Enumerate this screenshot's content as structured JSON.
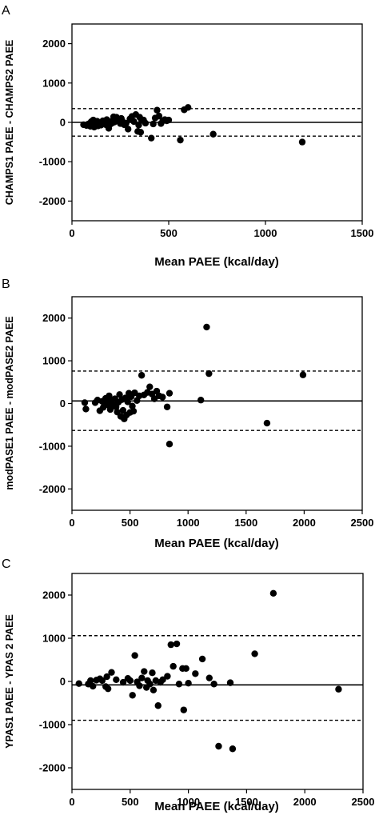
{
  "chart_data": [
    {
      "type": "scatter",
      "panel": "A",
      "xlabel": "Mean PAEE (kcal/day)",
      "ylabel": "CHAMPS1 PAEE - CHAMPS2 PAEE",
      "xlim": [
        0,
        1500
      ],
      "ylim": [
        -2500,
        2500
      ],
      "xticks": [
        "0",
        "500",
        "1000",
        "1500"
      ],
      "yticks": [
        "2000",
        "1000",
        "0",
        "-1000",
        "-2000"
      ],
      "mean_line": 0,
      "upper_limit": 350,
      "lower_limit": -350,
      "grid": false,
      "points": [
        [
          60,
          -60
        ],
        [
          75,
          -80
        ],
        [
          85,
          -40
        ],
        [
          95,
          -100
        ],
        [
          100,
          20
        ],
        [
          105,
          -30
        ],
        [
          110,
          60
        ],
        [
          115,
          -120
        ],
        [
          120,
          0
        ],
        [
          130,
          30
        ],
        [
          135,
          -90
        ],
        [
          140,
          -20
        ],
        [
          150,
          -70
        ],
        [
          160,
          40
        ],
        [
          170,
          0
        ],
        [
          175,
          -60
        ],
        [
          180,
          70
        ],
        [
          190,
          -150
        ],
        [
          195,
          20
        ],
        [
          200,
          -40
        ],
        [
          210,
          -10
        ],
        [
          215,
          140
        ],
        [
          220,
          10
        ],
        [
          230,
          130
        ],
        [
          240,
          80
        ],
        [
          250,
          -30
        ],
        [
          255,
          100
        ],
        [
          260,
          30
        ],
        [
          270,
          -60
        ],
        [
          280,
          -20
        ],
        [
          290,
          -170
        ],
        [
          300,
          90
        ],
        [
          310,
          150
        ],
        [
          320,
          20
        ],
        [
          330,
          200
        ],
        [
          340,
          -230
        ],
        [
          345,
          -70
        ],
        [
          350,
          130
        ],
        [
          355,
          -250
        ],
        [
          360,
          50
        ],
        [
          370,
          60
        ],
        [
          380,
          -20
        ],
        [
          410,
          -400
        ],
        [
          420,
          -40
        ],
        [
          430,
          110
        ],
        [
          440,
          310
        ],
        [
          450,
          160
        ],
        [
          460,
          -30
        ],
        [
          470,
          40
        ],
        [
          480,
          70
        ],
        [
          490,
          40
        ],
        [
          500,
          60
        ],
        [
          560,
          -450
        ],
        [
          580,
          320
        ],
        [
          600,
          380
        ],
        [
          730,
          -300
        ],
        [
          1190,
          -500
        ]
      ]
    },
    {
      "type": "scatter",
      "panel": "B",
      "xlabel": "Mean PAEE (kcal/day)",
      "ylabel": "modPASE1 PAEE - modPASE2 PAEE",
      "xlim": [
        0,
        2500
      ],
      "ylim": [
        -2500,
        2500
      ],
      "xticks": [
        "0",
        "500",
        "1000",
        "1500",
        "2000",
        "2500"
      ],
      "yticks": [
        "2000",
        "1000",
        "0",
        "-1000",
        "-2000"
      ],
      "mean_line": 60,
      "upper_limit": 760,
      "lower_limit": -630,
      "grid": false,
      "points": [
        [
          110,
          20
        ],
        [
          120,
          -130
        ],
        [
          200,
          20
        ],
        [
          220,
          80
        ],
        [
          240,
          -170
        ],
        [
          260,
          50
        ],
        [
          270,
          -90
        ],
        [
          290,
          120
        ],
        [
          300,
          20
        ],
        [
          310,
          -30
        ],
        [
          320,
          180
        ],
        [
          330,
          -140
        ],
        [
          340,
          70
        ],
        [
          360,
          -40
        ],
        [
          370,
          110
        ],
        [
          380,
          -80
        ],
        [
          390,
          -200
        ],
        [
          400,
          30
        ],
        [
          410,
          210
        ],
        [
          420,
          -300
        ],
        [
          430,
          90
        ],
        [
          440,
          -160
        ],
        [
          450,
          -360
        ],
        [
          460,
          130
        ],
        [
          470,
          -270
        ],
        [
          480,
          40
        ],
        [
          490,
          240
        ],
        [
          500,
          -210
        ],
        [
          510,
          160
        ],
        [
          520,
          -60
        ],
        [
          530,
          -180
        ],
        [
          540,
          250
        ],
        [
          560,
          70
        ],
        [
          580,
          180
        ],
        [
          600,
          660
        ],
        [
          620,
          200
        ],
        [
          650,
          260
        ],
        [
          670,
          390
        ],
        [
          690,
          220
        ],
        [
          710,
          110
        ],
        [
          730,
          290
        ],
        [
          750,
          180
        ],
        [
          780,
          150
        ],
        [
          820,
          -80
        ],
        [
          840,
          240
        ],
        [
          840,
          -950
        ],
        [
          1110,
          80
        ],
        [
          1160,
          1790
        ],
        [
          1180,
          700
        ],
        [
          1680,
          -460
        ],
        [
          1990,
          670
        ]
      ]
    },
    {
      "type": "scatter",
      "panel": "C",
      "xlabel": "Mean PAEE (kcal/day)",
      "ylabel": "YPAS1 PAEE - YPAS 2 PAEE",
      "xlim": [
        0,
        2500
      ],
      "ylim": [
        -2500,
        2500
      ],
      "xticks": [
        "0",
        "500",
        "1000",
        "1500",
        "2000",
        "2500"
      ],
      "yticks": [
        "2000",
        "1000",
        "0",
        "-1000",
        "-2000"
      ],
      "mean_line": -80,
      "upper_limit": 1060,
      "lower_limit": -900,
      "grid": false,
      "points": [
        [
          60,
          -50
        ],
        [
          140,
          -60
        ],
        [
          160,
          20
        ],
        [
          180,
          -110
        ],
        [
          210,
          30
        ],
        [
          240,
          60
        ],
        [
          260,
          20
        ],
        [
          290,
          -120
        ],
        [
          300,
          110
        ],
        [
          310,
          -170
        ],
        [
          340,
          210
        ],
        [
          380,
          40
        ],
        [
          440,
          -20
        ],
        [
          480,
          70
        ],
        [
          500,
          20
        ],
        [
          520,
          -320
        ],
        [
          540,
          600
        ],
        [
          560,
          -10
        ],
        [
          580,
          -100
        ],
        [
          600,
          80
        ],
        [
          620,
          230
        ],
        [
          640,
          -140
        ],
        [
          650,
          20
        ],
        [
          670,
          -60
        ],
        [
          690,
          200
        ],
        [
          700,
          -200
        ],
        [
          720,
          20
        ],
        [
          740,
          -560
        ],
        [
          760,
          -20
        ],
        [
          780,
          40
        ],
        [
          820,
          120
        ],
        [
          850,
          850
        ],
        [
          870,
          350
        ],
        [
          900,
          870
        ],
        [
          920,
          -60
        ],
        [
          950,
          300
        ],
        [
          960,
          -660
        ],
        [
          980,
          300
        ],
        [
          1000,
          -40
        ],
        [
          1060,
          180
        ],
        [
          1120,
          520
        ],
        [
          1180,
          80
        ],
        [
          1220,
          -60
        ],
        [
          1260,
          -1500
        ],
        [
          1360,
          -30
        ],
        [
          1380,
          -1560
        ],
        [
          1570,
          640
        ],
        [
          1730,
          2040
        ],
        [
          2290,
          -180
        ]
      ]
    }
  ]
}
